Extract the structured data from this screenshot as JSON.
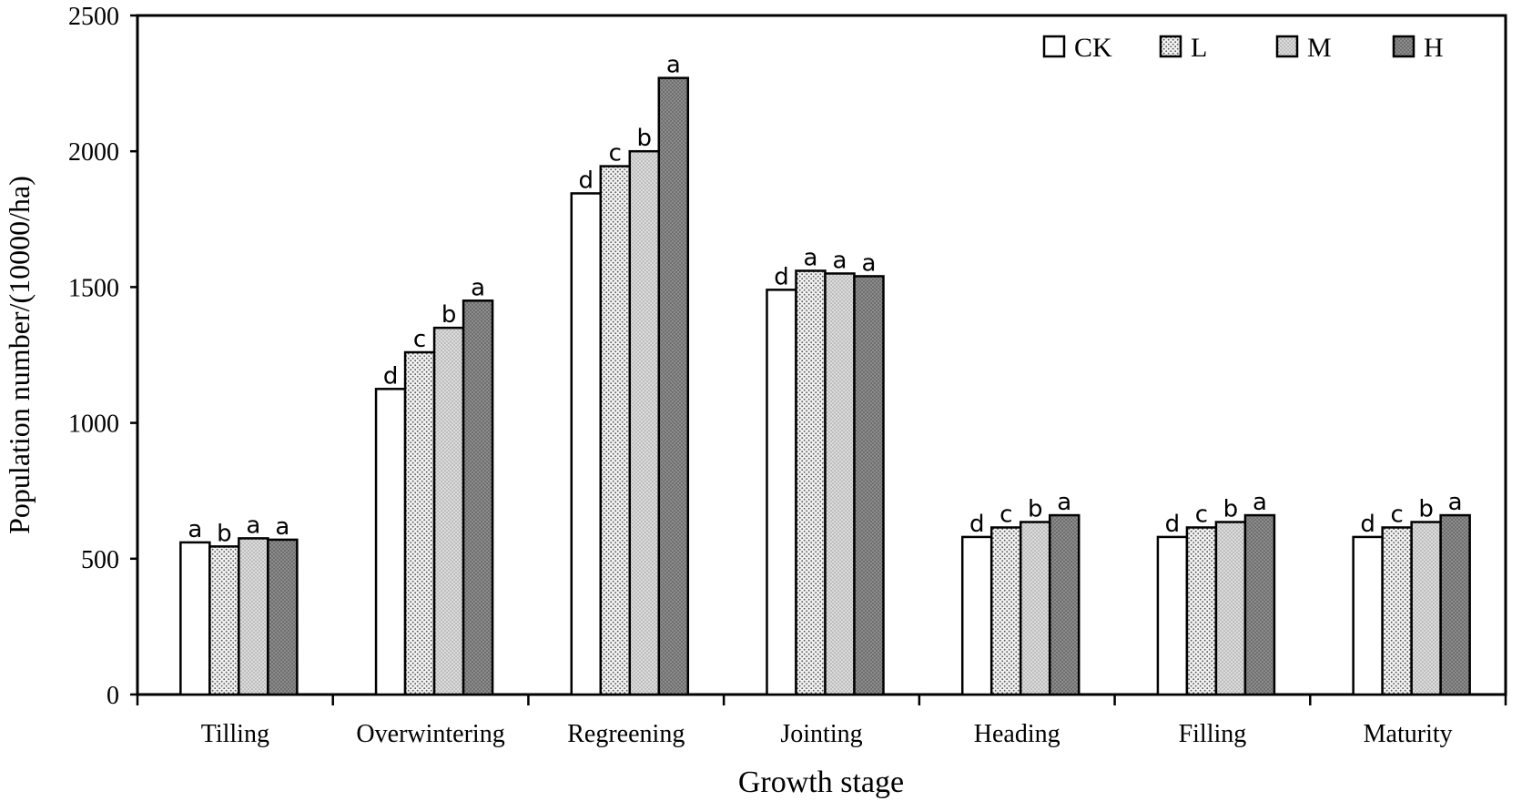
{
  "chart_data": {
    "type": "bar",
    "title": "",
    "xlabel": "Growth stage",
    "ylabel": "Population number/(10000/ha)",
    "ylim": [
      0,
      2500
    ],
    "yticks": [
      0,
      500,
      1000,
      1500,
      2000,
      2500
    ],
    "ytick_labels": [
      "0",
      "500",
      "1000",
      "1500",
      "2000",
      "2500"
    ],
    "categories": [
      "Tilling",
      "Overwintering",
      "Regreening",
      "Jointing",
      "Heading",
      "Filling",
      "Maturity"
    ],
    "legend_position": "top-right",
    "series": [
      {
        "name": "CK",
        "pattern": "white",
        "values": [
          560,
          1125,
          1845,
          1490,
          580,
          580,
          580
        ],
        "labels": [
          "a",
          "d",
          "d",
          "d",
          "d",
          "d",
          "d"
        ]
      },
      {
        "name": "L",
        "pattern": "fine-dots",
        "values": [
          545,
          1260,
          1945,
          1560,
          615,
          615,
          615
        ],
        "labels": [
          "b",
          "c",
          "c",
          "a",
          "c",
          "c",
          "c"
        ]
      },
      {
        "name": "M",
        "pattern": "light-dots",
        "values": [
          575,
          1350,
          2000,
          1550,
          635,
          635,
          635
        ],
        "labels": [
          "a",
          "b",
          "b",
          "a",
          "b",
          "b",
          "b"
        ]
      },
      {
        "name": "H",
        "pattern": "dark-dots",
        "values": [
          570,
          1450,
          2270,
          1540,
          660,
          660,
          660
        ],
        "labels": [
          "a",
          "a",
          "a",
          "a",
          "a",
          "a",
          "a"
        ]
      }
    ]
  }
}
